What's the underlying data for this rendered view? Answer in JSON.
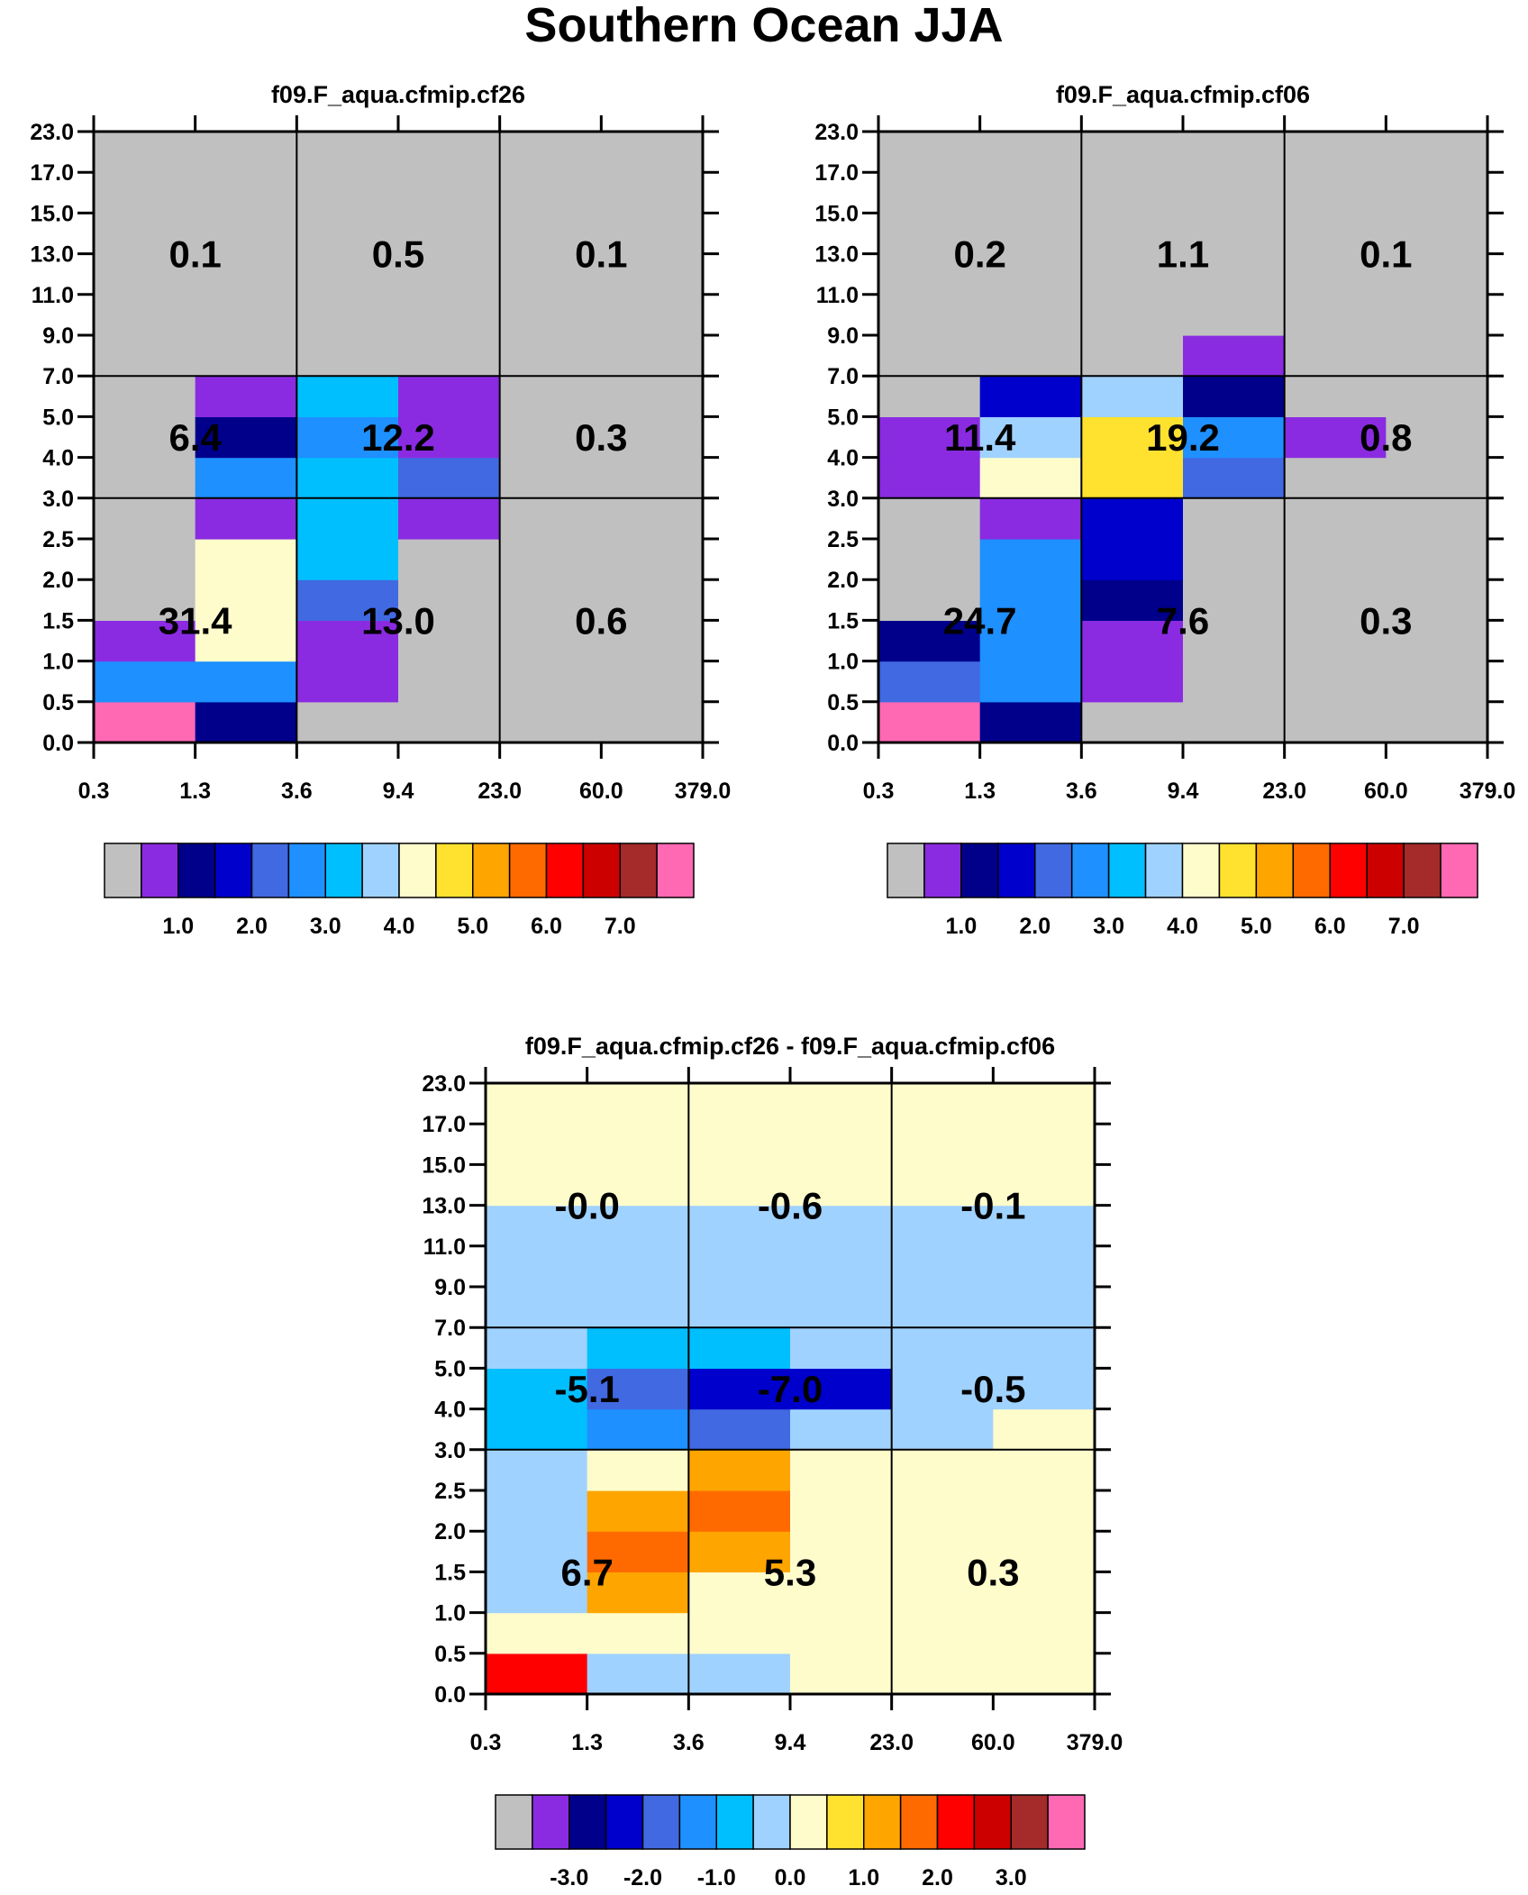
{
  "title": "Southern Ocean JJA",
  "axes": {
    "y_ticks": [
      "0.0",
      "0.5",
      "1.0",
      "1.5",
      "2.0",
      "2.5",
      "3.0",
      "4.0",
      "5.0",
      "7.0",
      "9.0",
      "11.0",
      "13.0",
      "15.0",
      "17.0",
      "23.0"
    ],
    "x_ticks": [
      "0.3",
      "1.3",
      "3.6",
      "9.4",
      "23.0",
      "60.0",
      "379.0"
    ]
  },
  "palette": [
    "#c0c0c0",
    "#8a2be2",
    "#00008b",
    "#0000cd",
    "#4169e1",
    "#1e90ff",
    "#00bfff",
    "#a0d2ff",
    "#fffccc",
    "#ffe130",
    "#ffa500",
    "#ff6a00",
    "#ff0000",
    "#cd0000",
    "#a52a2a",
    "#ff69b4"
  ],
  "chart_data": [
    {
      "type": "heatmap",
      "title": "f09.F_aqua.cfmip.cf26",
      "x_bins": [
        "0.3",
        "1.3",
        "3.6",
        "9.4",
        "23.0",
        "60.0",
        "379.0"
      ],
      "y_bins": [
        "0.0",
        "0.5",
        "1.0",
        "1.5",
        "2.0",
        "2.5",
        "3.0",
        "4.0",
        "5.0",
        "7.0",
        "9.0",
        "11.0",
        "13.0",
        "15.0",
        "17.0",
        "23.0"
      ],
      "cell_colors_bottom_to_top": [
        [
          15,
          2,
          0,
          0,
          0,
          0
        ],
        [
          5,
          5,
          1,
          0,
          0,
          0
        ],
        [
          1,
          8,
          1,
          0,
          0,
          0
        ],
        [
          0,
          8,
          4,
          0,
          0,
          0
        ],
        [
          0,
          8,
          6,
          0,
          0,
          0
        ],
        [
          0,
          1,
          6,
          1,
          0,
          0
        ],
        [
          0,
          5,
          6,
          4,
          0,
          0
        ],
        [
          0,
          2,
          5,
          1,
          0,
          0
        ],
        [
          0,
          1,
          6,
          1,
          0,
          0
        ],
        [
          0,
          0,
          0,
          0,
          0,
          0
        ],
        [
          0,
          0,
          0,
          0,
          0,
          0
        ],
        [
          0,
          0,
          0,
          0,
          0,
          0
        ],
        [
          0,
          0,
          0,
          0,
          0,
          0
        ],
        [
          0,
          0,
          0,
          0,
          0,
          0
        ],
        [
          0,
          0,
          0,
          0,
          0,
          0
        ]
      ],
      "group_labels": [
        [
          "31.4",
          "13.0",
          "0.6"
        ],
        [
          "6.4",
          "12.2",
          "0.3"
        ],
        [
          "0.1",
          "0.5",
          "0.1"
        ]
      ],
      "colorbar_ticks": [
        "1.0",
        "2.0",
        "3.0",
        "4.0",
        "5.0",
        "6.0",
        "7.0"
      ]
    },
    {
      "type": "heatmap",
      "title": "f09.F_aqua.cfmip.cf06",
      "x_bins": [
        "0.3",
        "1.3",
        "3.6",
        "9.4",
        "23.0",
        "60.0",
        "379.0"
      ],
      "y_bins": [
        "0.0",
        "0.5",
        "1.0",
        "1.5",
        "2.0",
        "2.5",
        "3.0",
        "4.0",
        "5.0",
        "7.0",
        "9.0",
        "11.0",
        "13.0",
        "15.0",
        "17.0",
        "23.0"
      ],
      "cell_colors_bottom_to_top": [
        [
          15,
          2,
          0,
          0,
          0,
          0
        ],
        [
          4,
          5,
          1,
          0,
          0,
          0
        ],
        [
          2,
          5,
          1,
          0,
          0,
          0
        ],
        [
          0,
          5,
          2,
          0,
          0,
          0
        ],
        [
          0,
          5,
          3,
          0,
          0,
          0
        ],
        [
          0,
          1,
          3,
          0,
          0,
          0
        ],
        [
          1,
          8,
          9,
          4,
          0,
          0
        ],
        [
          1,
          7,
          9,
          5,
          1,
          0
        ],
        [
          0,
          3,
          7,
          2,
          0,
          0
        ],
        [
          0,
          0,
          0,
          1,
          0,
          0
        ],
        [
          0,
          0,
          0,
          0,
          0,
          0
        ],
        [
          0,
          0,
          0,
          0,
          0,
          0
        ],
        [
          0,
          0,
          0,
          0,
          0,
          0
        ],
        [
          0,
          0,
          0,
          0,
          0,
          0
        ],
        [
          0,
          0,
          0,
          0,
          0,
          0
        ]
      ],
      "group_labels": [
        [
          "24.7",
          "7.6",
          "0.3"
        ],
        [
          "11.4",
          "19.2",
          "0.8"
        ],
        [
          "0.2",
          "1.1",
          "0.1"
        ]
      ],
      "colorbar_ticks": [
        "1.0",
        "2.0",
        "3.0",
        "4.0",
        "5.0",
        "6.0",
        "7.0"
      ]
    },
    {
      "type": "heatmap",
      "title": "f09.F_aqua.cfmip.cf26 - f09.F_aqua.cfmip.cf06",
      "x_bins": [
        "0.3",
        "1.3",
        "3.6",
        "9.4",
        "23.0",
        "60.0",
        "379.0"
      ],
      "y_bins": [
        "0.0",
        "0.5",
        "1.0",
        "1.5",
        "2.0",
        "2.5",
        "3.0",
        "4.0",
        "5.0",
        "7.0",
        "9.0",
        "11.0",
        "13.0",
        "15.0",
        "17.0",
        "23.0"
      ],
      "cell_colors_bottom_to_top": [
        [
          12,
          7,
          7,
          8,
          8,
          8
        ],
        [
          8,
          8,
          8,
          8,
          8,
          8
        ],
        [
          7,
          10,
          8,
          8,
          8,
          8
        ],
        [
          7,
          11,
          10,
          8,
          8,
          8
        ],
        [
          7,
          10,
          11,
          8,
          8,
          8
        ],
        [
          7,
          8,
          10,
          8,
          8,
          8
        ],
        [
          6,
          5,
          4,
          7,
          7,
          8
        ],
        [
          6,
          4,
          3,
          3,
          7,
          7
        ],
        [
          7,
          6,
          6,
          7,
          7,
          7
        ],
        [
          7,
          7,
          7,
          7,
          7,
          7
        ],
        [
          7,
          7,
          7,
          7,
          7,
          7
        ],
        [
          7,
          7,
          7,
          7,
          7,
          7
        ],
        [
          8,
          8,
          8,
          8,
          8,
          8
        ],
        [
          8,
          8,
          8,
          8,
          8,
          8
        ],
        [
          8,
          8,
          8,
          8,
          8,
          8
        ]
      ],
      "group_labels": [
        [
          "6.7",
          "5.3",
          "0.3"
        ],
        [
          "-5.1",
          "-7.0",
          "-0.5"
        ],
        [
          "-0.0",
          "-0.6",
          "-0.1"
        ]
      ],
      "colorbar_ticks": [
        "-3.0",
        "-2.0",
        "-1.0",
        "0.0",
        "1.0",
        "2.0",
        "3.0"
      ]
    }
  ]
}
